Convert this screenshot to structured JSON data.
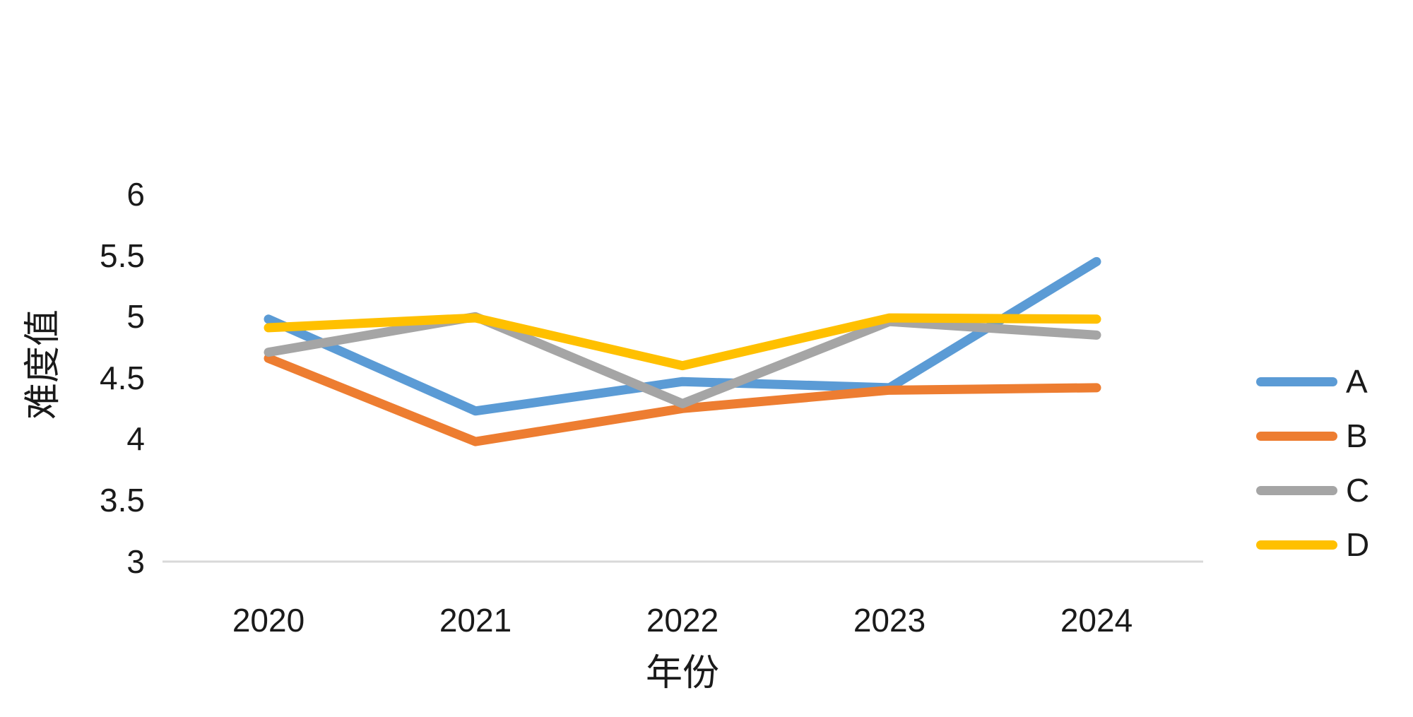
{
  "chart_data": {
    "type": "line",
    "title": "",
    "xlabel": "年份",
    "ylabel": "难度值",
    "categories": [
      "2020",
      "2021",
      "2022",
      "2023",
      "2024"
    ],
    "series": [
      {
        "name": "A",
        "color": "#5B9BD5",
        "values": [
          4.98,
          4.23,
          4.47,
          4.42,
          5.45
        ]
      },
      {
        "name": "B",
        "color": "#ED7D31",
        "values": [
          4.66,
          3.98,
          4.25,
          4.4,
          4.42
        ]
      },
      {
        "name": "C",
        "color": "#A5A5A5",
        "values": [
          4.71,
          5.0,
          4.29,
          4.96,
          4.85
        ]
      },
      {
        "name": "D",
        "color": "#FFC000",
        "values": [
          4.91,
          4.99,
          4.6,
          4.99,
          4.98
        ]
      }
    ],
    "ylim": [
      3,
      6
    ],
    "ytick_step": 0.5,
    "yticks": [
      "6",
      "5.5",
      "5",
      "4.5",
      "4",
      "3.5",
      "3"
    ],
    "grid": false,
    "legend_position": "right",
    "axis_line_color": "#D9D9D9",
    "line_width": 13
  }
}
